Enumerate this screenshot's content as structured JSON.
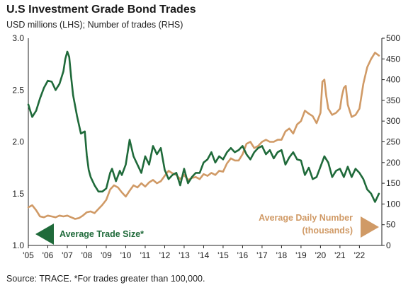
{
  "header": {
    "title": "U.S Investment Grade Bond Trades",
    "subtitle": "USD millions (LHS); Number of trades (RHS)"
  },
  "footnote": "Source: TRACE. *For trades greater than 100,000.",
  "colors": {
    "trade_size": "#1f6a3a",
    "daily_number": "#d09a66",
    "axis": "#222222"
  },
  "chart_data": {
    "type": "line",
    "grid": false,
    "x_range": [
      2005,
      2023.15
    ],
    "x_ticks": [
      {
        "value": 2005,
        "label": "'05"
      },
      {
        "value": 2006,
        "label": "'06"
      },
      {
        "value": 2007,
        "label": "'07"
      },
      {
        "value": 2008,
        "label": "'08"
      },
      {
        "value": 2009,
        "label": "'09"
      },
      {
        "value": 2010,
        "label": "'10"
      },
      {
        "value": 2011,
        "label": "'11"
      },
      {
        "value": 2012,
        "label": "'12"
      },
      {
        "value": 2013,
        "label": "'13"
      },
      {
        "value": 2014,
        "label": "'14"
      },
      {
        "value": 2015,
        "label": "'15"
      },
      {
        "value": 2016,
        "label": "'16"
      },
      {
        "value": 2017,
        "label": "'17"
      },
      {
        "value": 2018,
        "label": "'18"
      },
      {
        "value": 2019,
        "label": "'19"
      },
      {
        "value": 2020,
        "label": "'20"
      },
      {
        "value": 2021,
        "label": "'21"
      },
      {
        "value": 2022,
        "label": "'22"
      }
    ],
    "y_left": {
      "range": [
        1.0,
        3.0
      ],
      "ticks": [
        {
          "value": 1.0,
          "label": "1.0"
        },
        {
          "value": 1.5,
          "label": "1.5"
        },
        {
          "value": 2.0,
          "label": "2.0"
        },
        {
          "value": 2.5,
          "label": "2.5"
        },
        {
          "value": 3.0,
          "label": "3.0"
        }
      ]
    },
    "y_right": {
      "range": [
        0,
        500
      ],
      "ticks": [
        {
          "value": 0,
          "label": "0"
        },
        {
          "value": 50,
          "label": "50"
        },
        {
          "value": 100,
          "label": "100"
        },
        {
          "value": 150,
          "label": "150"
        },
        {
          "value": 200,
          "label": "200"
        },
        {
          "value": 250,
          "label": "250"
        },
        {
          "value": 300,
          "label": "300"
        },
        {
          "value": 350,
          "label": "350"
        },
        {
          "value": 400,
          "label": "400"
        },
        {
          "value": 450,
          "label": "450"
        },
        {
          "value": 500,
          "label": "500"
        }
      ]
    },
    "series": [
      {
        "name": "Average Trade Size*",
        "axis": "left",
        "x": [
          2005.0,
          2005.1,
          2005.2,
          2005.4,
          2005.6,
          2005.8,
          2006.0,
          2006.2,
          2006.4,
          2006.6,
          2006.8,
          2006.9,
          2007.0,
          2007.1,
          2007.2,
          2007.3,
          2007.5,
          2007.7,
          2007.9,
          2008.0,
          2008.1,
          2008.2,
          2008.4,
          2008.6,
          2008.8,
          2009.0,
          2009.2,
          2009.3,
          2009.5,
          2009.7,
          2009.8,
          2010.0,
          2010.2,
          2010.4,
          2010.6,
          2010.8,
          2011.0,
          2011.2,
          2011.4,
          2011.6,
          2011.8,
          2012.0,
          2012.2,
          2012.4,
          2012.6,
          2012.8,
          2013.0,
          2013.2,
          2013.4,
          2013.6,
          2013.8,
          2014.0,
          2014.2,
          2014.4,
          2014.6,
          2014.8,
          2015.0,
          2015.2,
          2015.4,
          2015.6,
          2015.8,
          2016.0,
          2016.2,
          2016.4,
          2016.6,
          2016.8,
          2017.0,
          2017.2,
          2017.4,
          2017.6,
          2017.8,
          2018.0,
          2018.2,
          2018.4,
          2018.6,
          2018.8,
          2019.0,
          2019.2,
          2019.4,
          2019.6,
          2019.8,
          2020.0,
          2020.2,
          2020.4,
          2020.6,
          2020.8,
          2021.0,
          2021.2,
          2021.4,
          2021.6,
          2021.8,
          2022.0,
          2022.2,
          2022.4,
          2022.6,
          2022.8,
          2023.0
        ],
        "values": [
          2.36,
          2.3,
          2.24,
          2.3,
          2.42,
          2.52,
          2.59,
          2.58,
          2.5,
          2.56,
          2.68,
          2.8,
          2.87,
          2.82,
          2.62,
          2.45,
          2.25,
          2.08,
          2.1,
          1.87,
          1.73,
          1.66,
          1.58,
          1.52,
          1.52,
          1.55,
          1.7,
          1.74,
          1.62,
          1.72,
          1.68,
          1.78,
          2.02,
          1.86,
          1.78,
          1.7,
          1.86,
          1.78,
          1.96,
          1.88,
          1.94,
          1.73,
          1.64,
          1.68,
          1.7,
          1.58,
          1.74,
          1.6,
          1.66,
          1.7,
          1.7,
          1.8,
          1.83,
          1.9,
          1.8,
          1.86,
          1.83,
          1.9,
          1.94,
          1.9,
          1.92,
          1.96,
          1.88,
          1.83,
          1.9,
          1.94,
          1.96,
          1.88,
          1.92,
          1.84,
          1.9,
          1.92,
          1.78,
          1.85,
          1.9,
          1.83,
          1.82,
          1.68,
          1.75,
          1.64,
          1.66,
          1.76,
          1.86,
          1.8,
          1.66,
          1.72,
          1.74,
          1.66,
          1.76,
          1.66,
          1.74,
          1.7,
          1.64,
          1.54,
          1.5,
          1.42,
          1.5
        ]
      },
      {
        "name": "Average Daily Number (thousands)",
        "axis": "right",
        "x": [
          2005.0,
          2005.2,
          2005.4,
          2005.6,
          2005.8,
          2006.0,
          2006.2,
          2006.4,
          2006.6,
          2006.8,
          2007.0,
          2007.2,
          2007.4,
          2007.6,
          2007.8,
          2008.0,
          2008.2,
          2008.4,
          2008.6,
          2008.8,
          2009.0,
          2009.2,
          2009.4,
          2009.6,
          2009.8,
          2010.0,
          2010.2,
          2010.4,
          2010.6,
          2010.8,
          2011.0,
          2011.2,
          2011.4,
          2011.6,
          2011.8,
          2012.0,
          2012.2,
          2012.4,
          2012.6,
          2012.8,
          2013.0,
          2013.2,
          2013.4,
          2013.6,
          2013.8,
          2014.0,
          2014.2,
          2014.4,
          2014.6,
          2014.8,
          2015.0,
          2015.2,
          2015.4,
          2015.6,
          2015.8,
          2016.0,
          2016.2,
          2016.4,
          2016.6,
          2016.8,
          2017.0,
          2017.2,
          2017.4,
          2017.6,
          2017.8,
          2018.0,
          2018.2,
          2018.4,
          2018.6,
          2018.8,
          2019.0,
          2019.2,
          2019.4,
          2019.6,
          2019.8,
          2020.0,
          2020.1,
          2020.2,
          2020.3,
          2020.4,
          2020.6,
          2020.8,
          2021.0,
          2021.1,
          2021.2,
          2021.3,
          2021.4,
          2021.6,
          2021.8,
          2022.0,
          2022.2,
          2022.4,
          2022.6,
          2022.8,
          2023.0
        ],
        "values": [
          92,
          97,
          85,
          70,
          68,
          72,
          70,
          68,
          72,
          70,
          72,
          68,
          64,
          66,
          72,
          80,
          82,
          78,
          88,
          98,
          110,
          135,
          145,
          140,
          128,
          118,
          132,
          145,
          140,
          150,
          142,
          152,
          158,
          150,
          155,
          168,
          180,
          174,
          170,
          160,
          170,
          158,
          163,
          165,
          160,
          172,
          168,
          175,
          170,
          180,
          178,
          198,
          210,
          205,
          205,
          220,
          245,
          250,
          235,
          240,
          250,
          255,
          250,
          250,
          255,
          255,
          275,
          282,
          270,
          292,
          300,
          325,
          318,
          312,
          295,
          320,
          395,
          400,
          360,
          330,
          315,
          320,
          330,
          360,
          380,
          385,
          340,
          310,
          315,
          330,
          390,
          430,
          450,
          465,
          458
        ]
      }
    ],
    "annotations": [
      {
        "text": "Average Trade Size*",
        "series": "Average Trade Size*",
        "arrow": "left"
      },
      {
        "lines": [
          "Average Daily Number",
          "(thousands)"
        ],
        "series": "Average Daily Number (thousands)",
        "arrow": "right"
      }
    ]
  }
}
